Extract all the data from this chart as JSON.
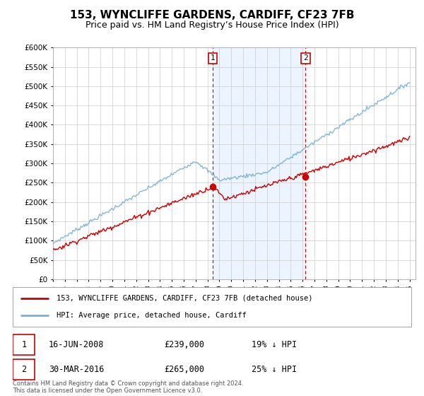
{
  "title": "153, WYNCLIFFE GARDENS, CARDIFF, CF23 7FB",
  "subtitle": "Price paid vs. HM Land Registry’s House Price Index (HPI)",
  "ylabel_ticks": [
    0,
    50000,
    100000,
    150000,
    200000,
    250000,
    300000,
    350000,
    400000,
    450000,
    500000,
    550000,
    600000
  ],
  "ylim": [
    0,
    600000
  ],
  "xlim_start": 1995,
  "xlim_end": 2025.5,
  "hpi_color": "#7ab0d4",
  "property_color": "#cc0000",
  "vline_color": "#cc0000",
  "background_color": "#ffffff",
  "grid_color": "#cccccc",
  "marker1_x": 2008.45,
  "marker1_y": 239000,
  "marker2_x": 2016.25,
  "marker2_y": 265000,
  "legend_entry1": "153, WYNCLIFFE GARDENS, CARDIFF, CF23 7FB (detached house)",
  "legend_entry2": "HPI: Average price, detached house, Cardiff",
  "annotation1_date": "16-JUN-2008",
  "annotation1_price": "£239,000",
  "annotation1_hpi": "19% ↓ HPI",
  "annotation2_date": "30-MAR-2016",
  "annotation2_price": "£265,000",
  "annotation2_hpi": "25% ↓ HPI",
  "footer": "Contains HM Land Registry data © Crown copyright and database right 2024.\nThis data is licensed under the Open Government Licence v3.0.",
  "title_fontsize": 11,
  "subtitle_fontsize": 9
}
